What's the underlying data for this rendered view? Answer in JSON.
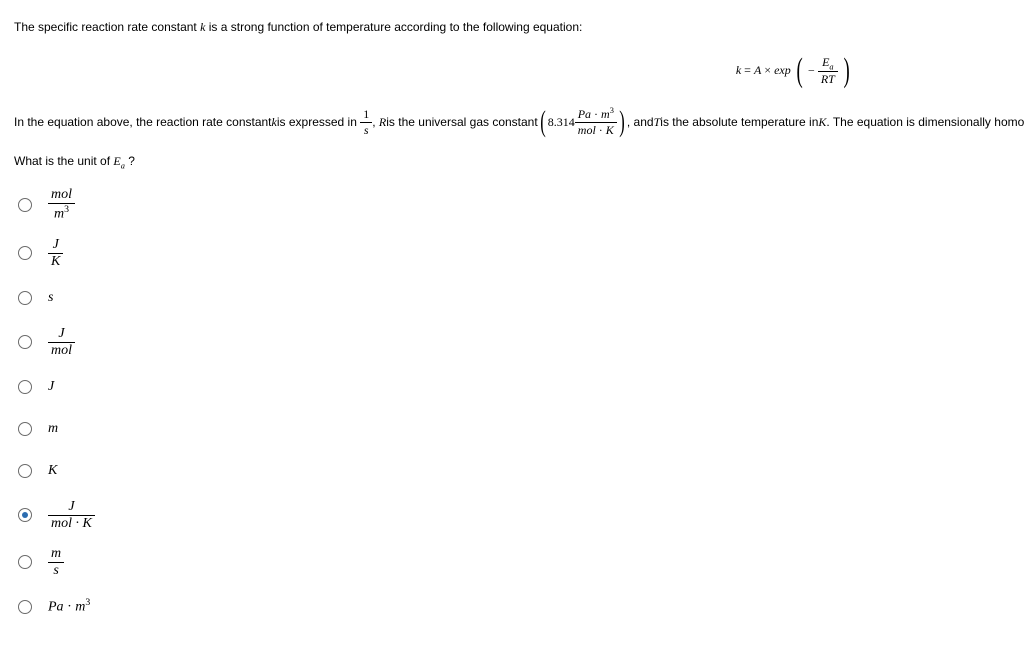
{
  "intro": {
    "line1_pre": "The specific reaction rate constant ",
    "k": "k",
    "line1_post": " is a strong function of temperature according to the following equation:"
  },
  "main_eq": {
    "k": "k",
    "eq": " = ",
    "A": "A",
    "times": " × ",
    "exp": "exp",
    "minus": "−",
    "Ea_E": "E",
    "Ea_a": "a",
    "RT": "RT"
  },
  "line2": {
    "t1": "In the equation above, the reaction rate constant ",
    "k": "k",
    "t2": " is expressed in ",
    "frac1_num": "1",
    "frac1_den": "s",
    "t3": ", ",
    "R": "R",
    "t4": " is the universal gas constant ",
    "gc_val": "8.314",
    "gc_num_pa": "Pa",
    "gc_num_dot": " · ",
    "gc_num_m": "m",
    "gc_num_exp": "3",
    "gc_den_mol": "mol",
    "gc_den_dot": " · ",
    "gc_den_K": "K",
    "t5": ", and ",
    "T": "T",
    "t6": " is the absolute temperature in ",
    "Kunit": "K",
    "t7": ". The equation is dimensionally homogenous."
  },
  "question": {
    "pre": "What is the unit of ",
    "E": "E",
    "a": "a",
    "post": " ?"
  },
  "choices": [
    {
      "type": "frac",
      "num": "mol",
      "den_base": "m",
      "den_exp": "3",
      "selected": false
    },
    {
      "type": "frac",
      "num": "J",
      "den": "K",
      "selected": false
    },
    {
      "type": "plain",
      "text": "s",
      "selected": false
    },
    {
      "type": "frac",
      "num": "J",
      "den": "mol",
      "selected": false
    },
    {
      "type": "plain",
      "text": "J",
      "selected": false
    },
    {
      "type": "plain",
      "text": "m",
      "selected": false
    },
    {
      "type": "plain",
      "text": "K",
      "selected": false
    },
    {
      "type": "frac",
      "num": "J",
      "den": "mol · K",
      "selected": true
    },
    {
      "type": "frac",
      "num": "m",
      "den": "s",
      "selected": false
    },
    {
      "type": "compound",
      "a": "Pa",
      "dot": " · ",
      "b": "m",
      "exp": "3",
      "selected": false
    }
  ]
}
